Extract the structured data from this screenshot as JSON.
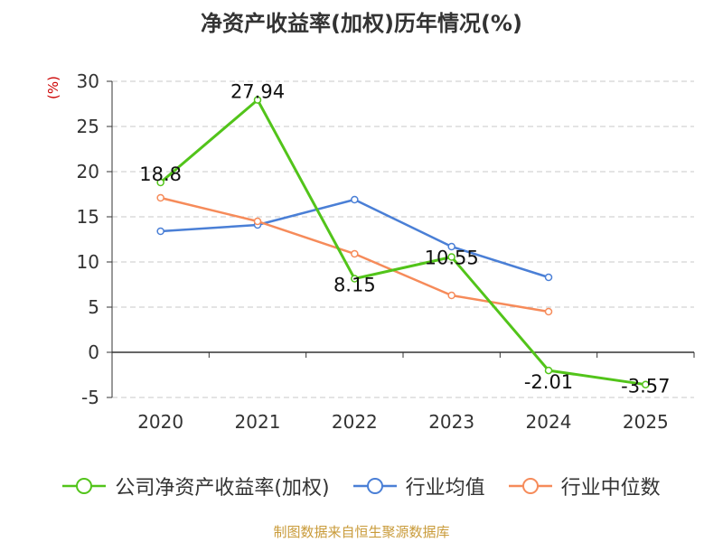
{
  "title": "净资产收益率(加权)历年情况(%)",
  "unit_label": "(%)",
  "source": "制图数据来自恒生聚源数据库",
  "colors": {
    "company": "#52c41a",
    "avg": "#4a7fd6",
    "median": "#f68b5a",
    "grid": "#c8c8c8",
    "axis": "#333333",
    "text": "#333333",
    "unit": "#cc0000",
    "source": "#c99b3a"
  },
  "chart_data": {
    "type": "line",
    "title": "净资产收益率(加权)历年情况(%)",
    "ylabel": "(%)",
    "xlabel": "",
    "categories": [
      "2020",
      "2021",
      "2022",
      "2023",
      "2024",
      "2025"
    ],
    "ylim": [
      -5,
      30
    ],
    "yticks": [
      "30",
      "25",
      "20",
      "15",
      "10",
      "5",
      "0",
      "-5"
    ],
    "ytick_values": [
      30,
      25,
      20,
      15,
      10,
      5,
      0,
      -5
    ],
    "grid": true,
    "legend_position": "bottom",
    "series": [
      {
        "name": "公司净资产收益率(加权)",
        "key": "company",
        "values": [
          18.8,
          27.94,
          8.15,
          10.55,
          -2.01,
          -3.57
        ],
        "labels": [
          "18.8",
          "27.94",
          "8.15",
          "10.55",
          "-2.01",
          "-3.57"
        ]
      },
      {
        "name": "行业均值",
        "key": "avg",
        "values": [
          13.4,
          14.1,
          16.9,
          11.7,
          8.3,
          null
        ]
      },
      {
        "name": "行业中位数",
        "key": "median",
        "values": [
          17.1,
          14.5,
          10.9,
          6.3,
          4.5,
          null
        ]
      }
    ]
  }
}
